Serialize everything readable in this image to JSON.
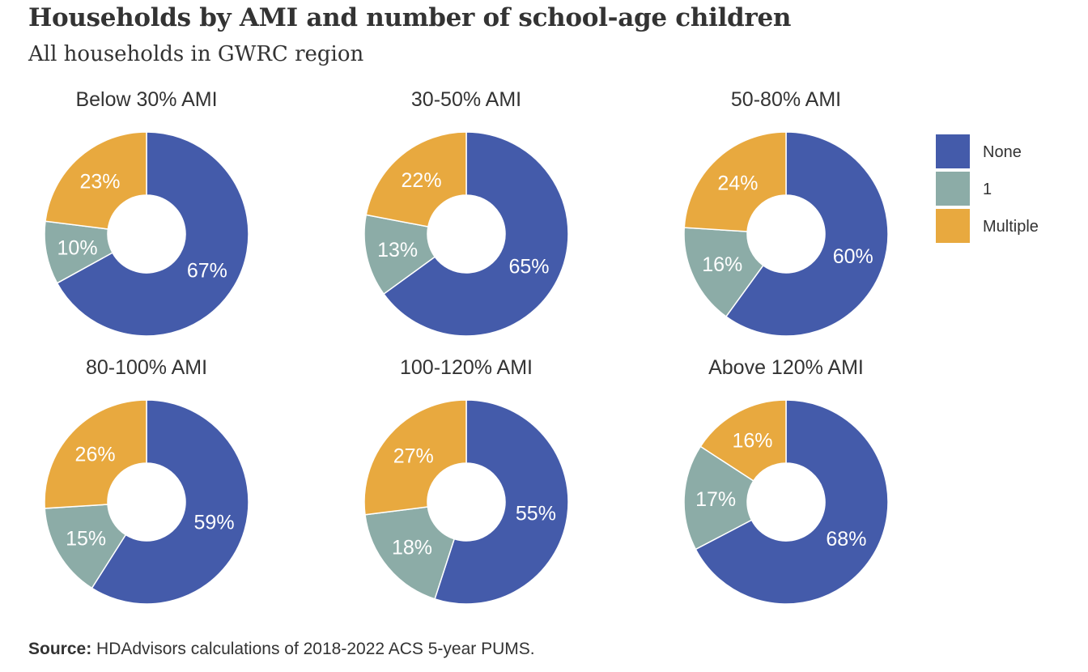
{
  "title": "Households by AMI and number of school-age children",
  "subtitle": "All households in GWRC region",
  "source": {
    "label": "Source:",
    "text": "HDAdvisors  calculations of 2018-2022  ACS 5-year PUMS."
  },
  "legend": [
    {
      "name": "None",
      "color": "#445BAA"
    },
    {
      "name": "1",
      "color": "#8CACA7"
    },
    {
      "name": "Multiple",
      "color": "#E8A93F"
    }
  ],
  "chart_data": [
    {
      "type": "pie",
      "title": "Below 30% AMI",
      "categories": [
        "None",
        "1",
        "Multiple"
      ],
      "values": [
        67,
        10,
        23
      ]
    },
    {
      "type": "pie",
      "title": "30-50% AMI",
      "categories": [
        "None",
        "1",
        "Multiple"
      ],
      "values": [
        65,
        13,
        22
      ]
    },
    {
      "type": "pie",
      "title": "50-80% AMI",
      "categories": [
        "None",
        "1",
        "Multiple"
      ],
      "values": [
        60,
        16,
        24
      ]
    },
    {
      "type": "pie",
      "title": "80-100% AMI",
      "categories": [
        "None",
        "1",
        "Multiple"
      ],
      "values": [
        59,
        15,
        26
      ]
    },
    {
      "type": "pie",
      "title": "100-120% AMI",
      "categories": [
        "None",
        "1",
        "Multiple"
      ],
      "values": [
        55,
        18,
        27
      ]
    },
    {
      "type": "pie",
      "title": "Above 120% AMI",
      "categories": [
        "None",
        "1",
        "Multiple"
      ],
      "values": [
        68,
        17,
        16
      ]
    }
  ]
}
